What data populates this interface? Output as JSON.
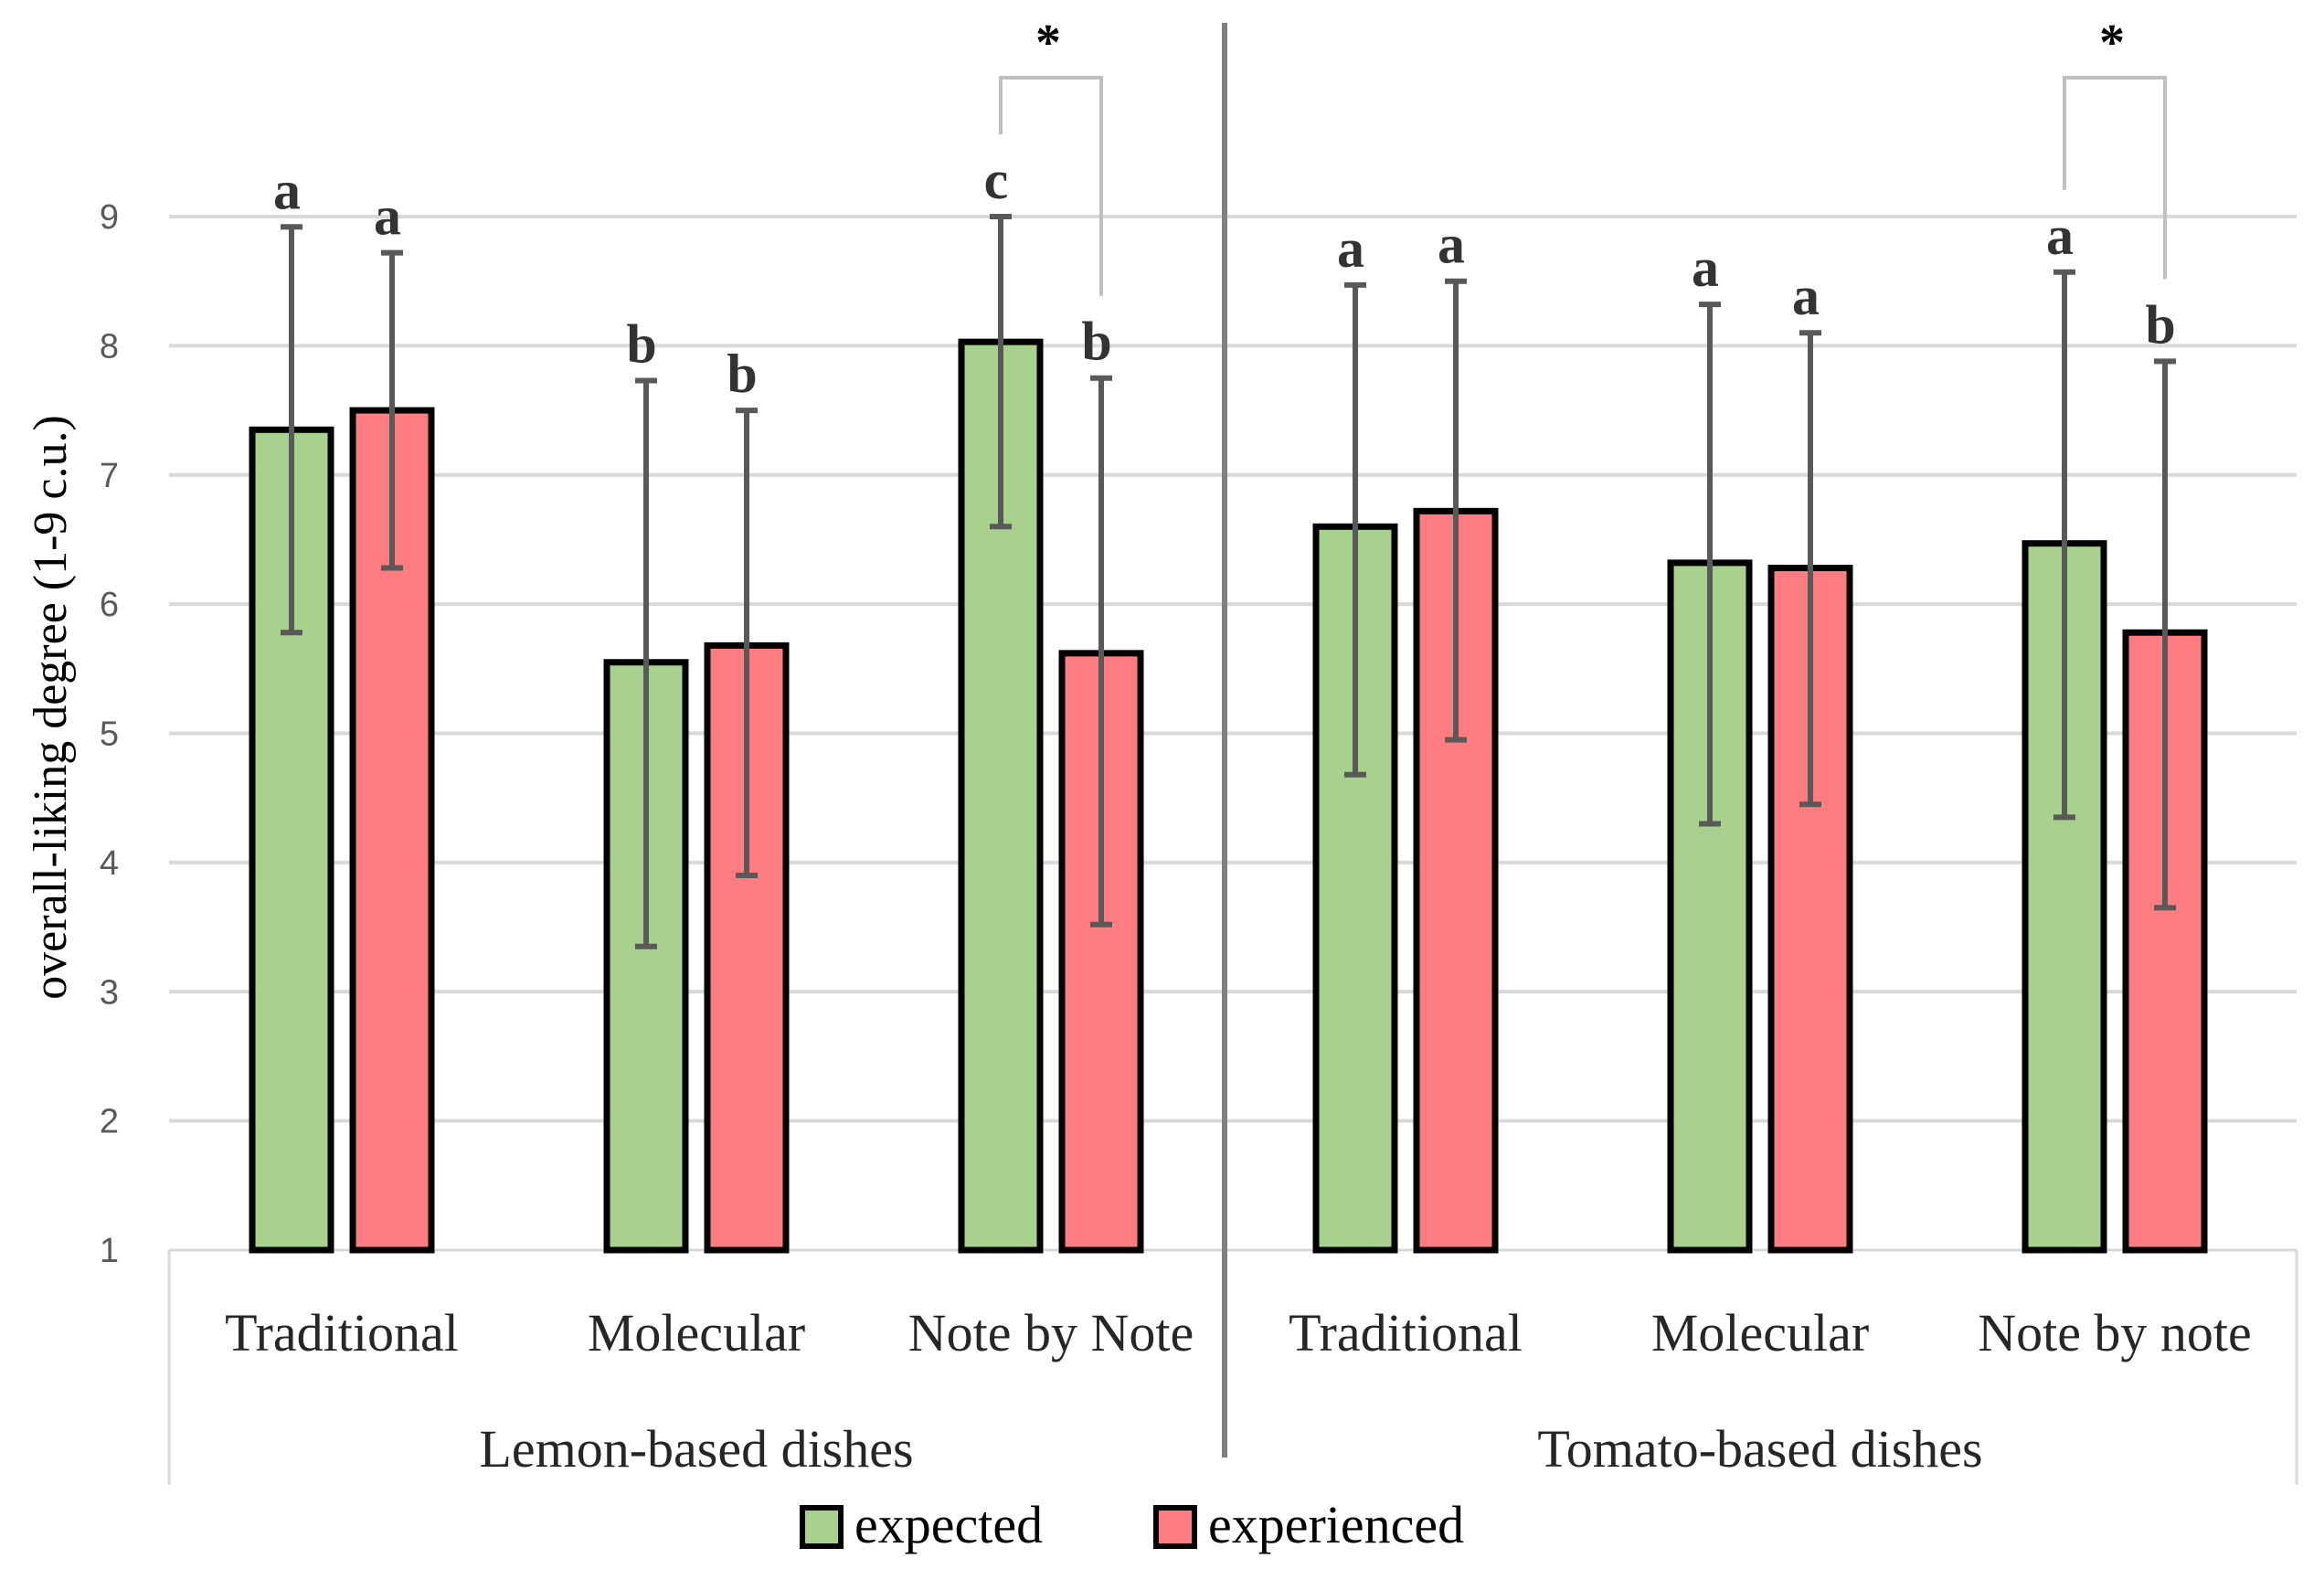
{
  "chart_data": {
    "type": "bar",
    "title": "",
    "ylabel": "overall-liking degree (1-9 c.u.)",
    "xlabel": "",
    "ylim": [
      1,
      9
    ],
    "yticks": [
      "1",
      "2",
      "3",
      "4",
      "5",
      "6",
      "7",
      "8",
      "9"
    ],
    "grid": true,
    "legend_position": "bottom",
    "groups": [
      {
        "label": "Lemon-based dishes",
        "categories": [
          {
            "label": "Traditional",
            "expected": {
              "value": 7.35,
              "low": 5.78,
              "high": 8.92,
              "letter": "a"
            },
            "experienced": {
              "value": 7.5,
              "low": 6.28,
              "high": 8.72,
              "letter": "a"
            }
          },
          {
            "label": "Molecular",
            "expected": {
              "value": 5.55,
              "low": 3.35,
              "high": 7.73,
              "letter": "b"
            },
            "experienced": {
              "value": 5.68,
              "low": 3.9,
              "high": 7.5,
              "letter": "b"
            }
          },
          {
            "label": "Note by Note",
            "expected": {
              "value": 8.03,
              "low": 6.6,
              "high": 9.0,
              "letter": "c"
            },
            "experienced": {
              "value": 5.62,
              "low": 3.52,
              "high": 7.75,
              "letter": "b"
            },
            "significance": "*"
          }
        ]
      },
      {
        "label": "Tomato-based dishes",
        "categories": [
          {
            "label": "Traditional",
            "expected": {
              "value": 6.6,
              "low": 4.68,
              "high": 8.47,
              "letter": "a"
            },
            "experienced": {
              "value": 6.72,
              "low": 4.95,
              "high": 8.5,
              "letter": "a"
            }
          },
          {
            "label": "Molecular",
            "expected": {
              "value": 6.32,
              "low": 4.3,
              "high": 8.32,
              "letter": "a"
            },
            "experienced": {
              "value": 6.28,
              "low": 4.45,
              "high": 8.1,
              "letter": "a"
            }
          },
          {
            "label": "Note by note",
            "expected": {
              "value": 6.47,
              "low": 4.35,
              "high": 8.57,
              "letter": "a"
            },
            "experienced": {
              "value": 5.78,
              "low": 3.65,
              "high": 7.88,
              "letter": "b"
            },
            "significance": "*"
          }
        ]
      }
    ],
    "series": [
      {
        "key": "expected",
        "name": "expected",
        "color": "#a9d18e"
      },
      {
        "key": "experienced",
        "name": "experienced",
        "color": "#ff7c80"
      }
    ]
  }
}
